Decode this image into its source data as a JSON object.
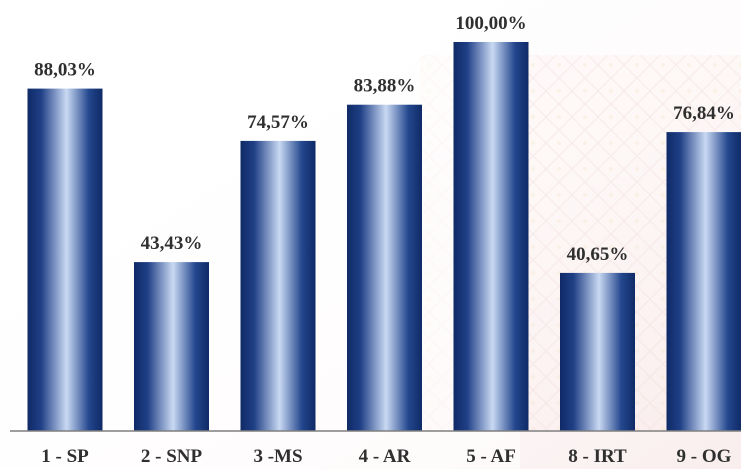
{
  "chart_data": {
    "type": "bar",
    "categories": [
      "1 - SP",
      "2 - SNP",
      "3 -MS",
      "4 - AR",
      "5 - AF",
      "8 - IRT",
      "9 - OG"
    ],
    "values": [
      88.03,
      43.43,
      74.57,
      83.88,
      100.0,
      40.65,
      76.84
    ],
    "value_labels": [
      "88,03%",
      "43,43%",
      "74,57%",
      "83,88%",
      "100,00%",
      "40,65%",
      "76,84%"
    ],
    "ylim": [
      0,
      100
    ],
    "grid": false,
    "legend": "none",
    "colors": {
      "bar_dark": "#0f2a66",
      "bar_light": "#c9d9f3",
      "label": "#2f2f2f",
      "axis": "#7f7f7f",
      "background_tint": "#f7e6e6"
    }
  }
}
